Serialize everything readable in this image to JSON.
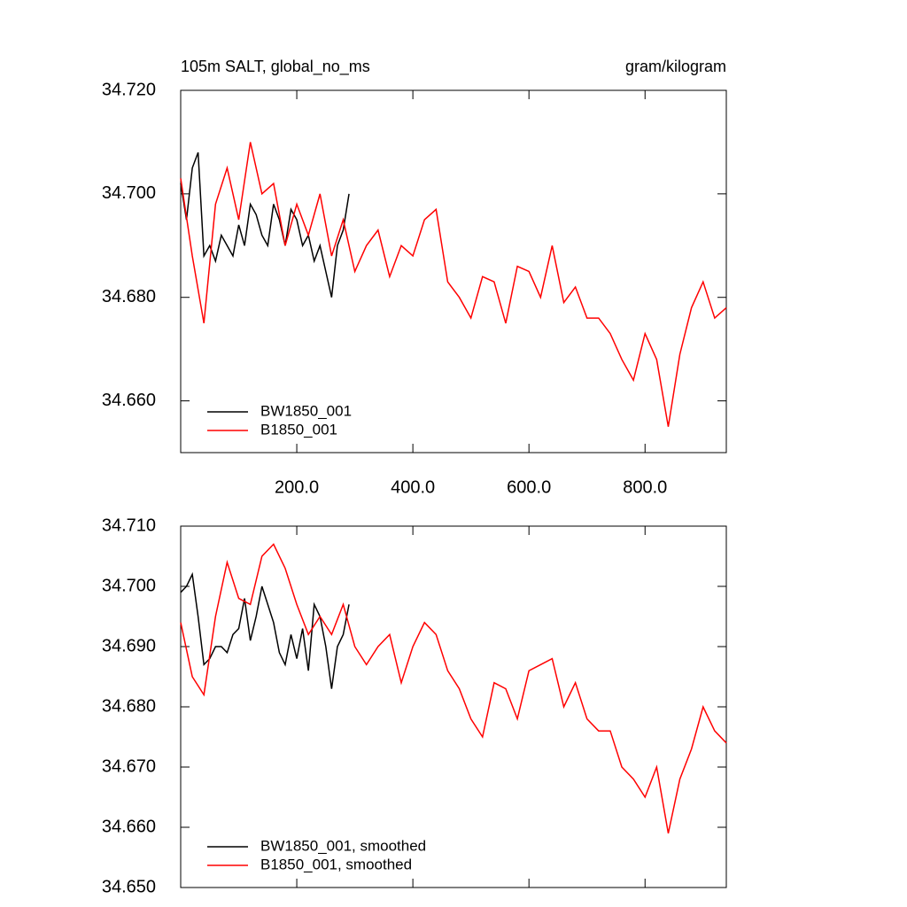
{
  "chart_data": [
    {
      "type": "line",
      "title": "105m SALT, global_no_ms",
      "units": "gram/kilogram",
      "xlim": [
        0,
        940
      ],
      "ylim": [
        34.65,
        34.72
      ],
      "xticks": [
        {
          "value": 200,
          "label": "200.0"
        },
        {
          "value": 400,
          "label": "400.0"
        },
        {
          "value": 600,
          "label": "600.0"
        },
        {
          "value": 800,
          "label": "800.0"
        }
      ],
      "yticks": [
        {
          "value": 34.66,
          "label": "34.660"
        },
        {
          "value": 34.68,
          "label": "34.680"
        },
        {
          "value": 34.7,
          "label": "34.700"
        },
        {
          "value": 34.72,
          "label": "34.720"
        }
      ],
      "legend": "lower left",
      "series": [
        {
          "name": "BW1850_001",
          "color": "#000000",
          "x": [
            0,
            10,
            20,
            30,
            40,
            50,
            60,
            70,
            80,
            90,
            100,
            110,
            120,
            130,
            140,
            150,
            160,
            170,
            180,
            190,
            200,
            210,
            220,
            230,
            240,
            250,
            260,
            270,
            280,
            290
          ],
          "values": [
            34.702,
            34.695,
            34.705,
            34.708,
            34.688,
            34.69,
            34.687,
            34.692,
            34.69,
            34.688,
            34.694,
            34.69,
            34.698,
            34.696,
            34.692,
            34.69,
            34.698,
            34.695,
            34.69,
            34.697,
            34.695,
            34.69,
            34.692,
            34.687,
            34.69,
            34.685,
            34.68,
            34.69,
            34.693,
            34.7
          ]
        },
        {
          "name": "B1850_001",
          "color": "#ff0000",
          "x": [
            0,
            20,
            40,
            60,
            80,
            100,
            120,
            140,
            160,
            180,
            200,
            220,
            240,
            260,
            280,
            300,
            320,
            340,
            360,
            380,
            400,
            420,
            440,
            460,
            480,
            500,
            520,
            540,
            560,
            580,
            600,
            620,
            640,
            660,
            680,
            700,
            720,
            740,
            760,
            780,
            800,
            820,
            840,
            860,
            880,
            900,
            920,
            940
          ],
          "values": [
            34.703,
            34.688,
            34.675,
            34.698,
            34.705,
            34.695,
            34.71,
            34.7,
            34.702,
            34.69,
            34.698,
            34.692,
            34.7,
            34.688,
            34.695,
            34.685,
            34.69,
            34.693,
            34.684,
            34.69,
            34.688,
            34.695,
            34.697,
            34.683,
            34.68,
            34.676,
            34.684,
            34.683,
            34.675,
            34.686,
            34.685,
            34.68,
            34.69,
            34.679,
            34.682,
            34.676,
            34.676,
            34.673,
            34.668,
            34.664,
            34.673,
            34.668,
            34.655,
            34.669,
            34.678,
            34.683,
            34.676,
            34.678
          ]
        }
      ]
    },
    {
      "type": "line",
      "xlim": [
        0,
        940
      ],
      "ylim": [
        34.65,
        34.71
      ],
      "xticks": [
        200,
        400,
        600,
        800
      ],
      "yticks": [
        {
          "value": 34.65,
          "label": "34.650"
        },
        {
          "value": 34.66,
          "label": "34.660"
        },
        {
          "value": 34.67,
          "label": "34.670"
        },
        {
          "value": 34.68,
          "label": "34.680"
        },
        {
          "value": 34.69,
          "label": "34.690"
        },
        {
          "value": 34.7,
          "label": "34.700"
        },
        {
          "value": 34.71,
          "label": "34.710"
        }
      ],
      "legend": "lower left",
      "series": [
        {
          "name": "BW1850_001, smoothed",
          "color": "#000000",
          "x": [
            0,
            10,
            20,
            30,
            40,
            50,
            60,
            70,
            80,
            90,
            100,
            110,
            120,
            130,
            140,
            150,
            160,
            170,
            180,
            190,
            200,
            210,
            220,
            230,
            240,
            250,
            260,
            270,
            280,
            290
          ],
          "values": [
            34.699,
            34.7,
            34.702,
            34.695,
            34.687,
            34.688,
            34.69,
            34.69,
            34.689,
            34.692,
            34.693,
            34.698,
            34.691,
            34.695,
            34.7,
            34.697,
            34.694,
            34.689,
            34.687,
            34.692,
            34.688,
            34.693,
            34.686,
            34.697,
            34.695,
            34.69,
            34.683,
            34.69,
            34.692,
            34.697
          ]
        },
        {
          "name": "B1850_001, smoothed",
          "color": "#ff0000",
          "x": [
            0,
            20,
            40,
            60,
            80,
            100,
            120,
            140,
            160,
            180,
            200,
            220,
            240,
            260,
            280,
            300,
            320,
            340,
            360,
            380,
            400,
            420,
            440,
            460,
            480,
            500,
            520,
            540,
            560,
            580,
            600,
            620,
            640,
            660,
            680,
            700,
            720,
            740,
            760,
            780,
            800,
            820,
            840,
            860,
            880,
            900,
            920,
            940
          ],
          "values": [
            34.694,
            34.685,
            34.682,
            34.695,
            34.704,
            34.698,
            34.697,
            34.705,
            34.707,
            34.703,
            34.697,
            34.692,
            34.695,
            34.692,
            34.697,
            34.69,
            34.687,
            34.69,
            34.692,
            34.684,
            34.69,
            34.694,
            34.692,
            34.686,
            34.683,
            34.678,
            34.675,
            34.684,
            34.683,
            34.678,
            34.686,
            34.687,
            34.688,
            34.68,
            34.684,
            34.678,
            34.676,
            34.676,
            34.67,
            34.668,
            34.665,
            34.67,
            34.659,
            34.668,
            34.673,
            34.68,
            34.676,
            34.674
          ]
        }
      ]
    }
  ]
}
